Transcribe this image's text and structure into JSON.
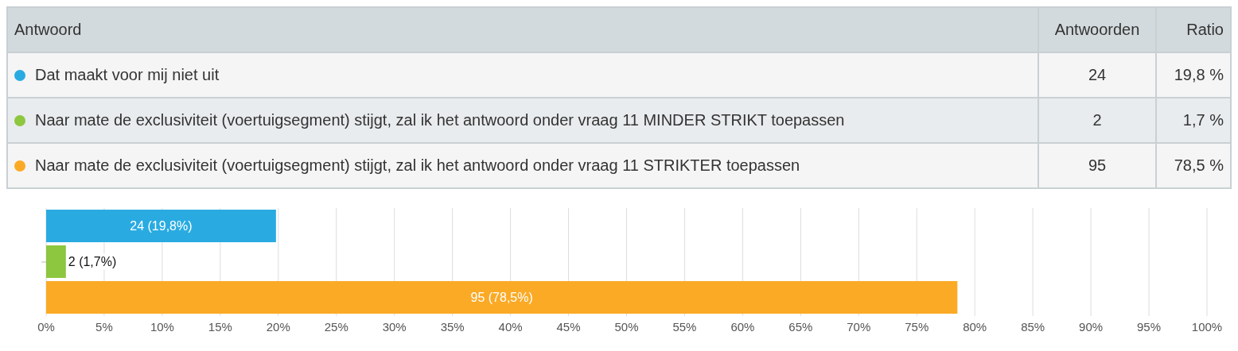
{
  "chart_data": {
    "type": "bar",
    "orientation": "horizontal",
    "categories": [
      null
    ],
    "series": [
      {
        "name": "Dat maakt voor mij niet uit",
        "color": "#29abe2",
        "values": [
          19.8
        ],
        "value_labels": [
          "24 (19,8%)"
        ]
      },
      {
        "name": "Naar mate de exclusiviteit (voertuigsegment) stijgt, zal ik het antwoord onder vraag 11 MINDER STRIKT toepassen",
        "color": "#8dc63f",
        "values": [
          1.7
        ],
        "value_labels": [
          "2 (1,7%)"
        ]
      },
      {
        "name": "Naar mate de exclusiviteit (voertuigsegment) stijgt, zal ik het antwoord onder vraag 11 STRIKTER toepassen",
        "color": "#fbaa26",
        "values": [
          78.5
        ],
        "value_labels": [
          "95 (78,5%)"
        ]
      }
    ],
    "xlim": [
      0,
      100
    ],
    "xticks": [
      {
        "value": 0,
        "label": "0%"
      },
      {
        "value": 5,
        "label": "5%"
      },
      {
        "value": 10,
        "label": "10%"
      },
      {
        "value": 15,
        "label": "15%"
      },
      {
        "value": 20,
        "label": "20%"
      },
      {
        "value": 25,
        "label": "25%"
      },
      {
        "value": 30,
        "label": "30%"
      },
      {
        "value": 35,
        "label": "35%"
      },
      {
        "value": 40,
        "label": "40%"
      },
      {
        "value": 45,
        "label": "45%"
      },
      {
        "value": 50,
        "label": "50%"
      },
      {
        "value": 55,
        "label": "55%"
      },
      {
        "value": 60,
        "label": "60%"
      },
      {
        "value": 65,
        "label": "65%"
      },
      {
        "value": 70,
        "label": "70%"
      },
      {
        "value": 75,
        "label": "75%"
      },
      {
        "value": 80,
        "label": "80%"
      },
      {
        "value": 85,
        "label": "85%"
      },
      {
        "value": 90,
        "label": "90%"
      },
      {
        "value": 95,
        "label": "95%"
      },
      {
        "value": 100,
        "label": "100%"
      }
    ],
    "grid": "x",
    "tick_labels": "x",
    "legend": "top",
    "annotations": [
      "Antwoord",
      "Antwoorden",
      "Ratio",
      "24",
      "19,8 %",
      "2",
      "1,7 %",
      "95",
      "78,5 %"
    ]
  }
}
